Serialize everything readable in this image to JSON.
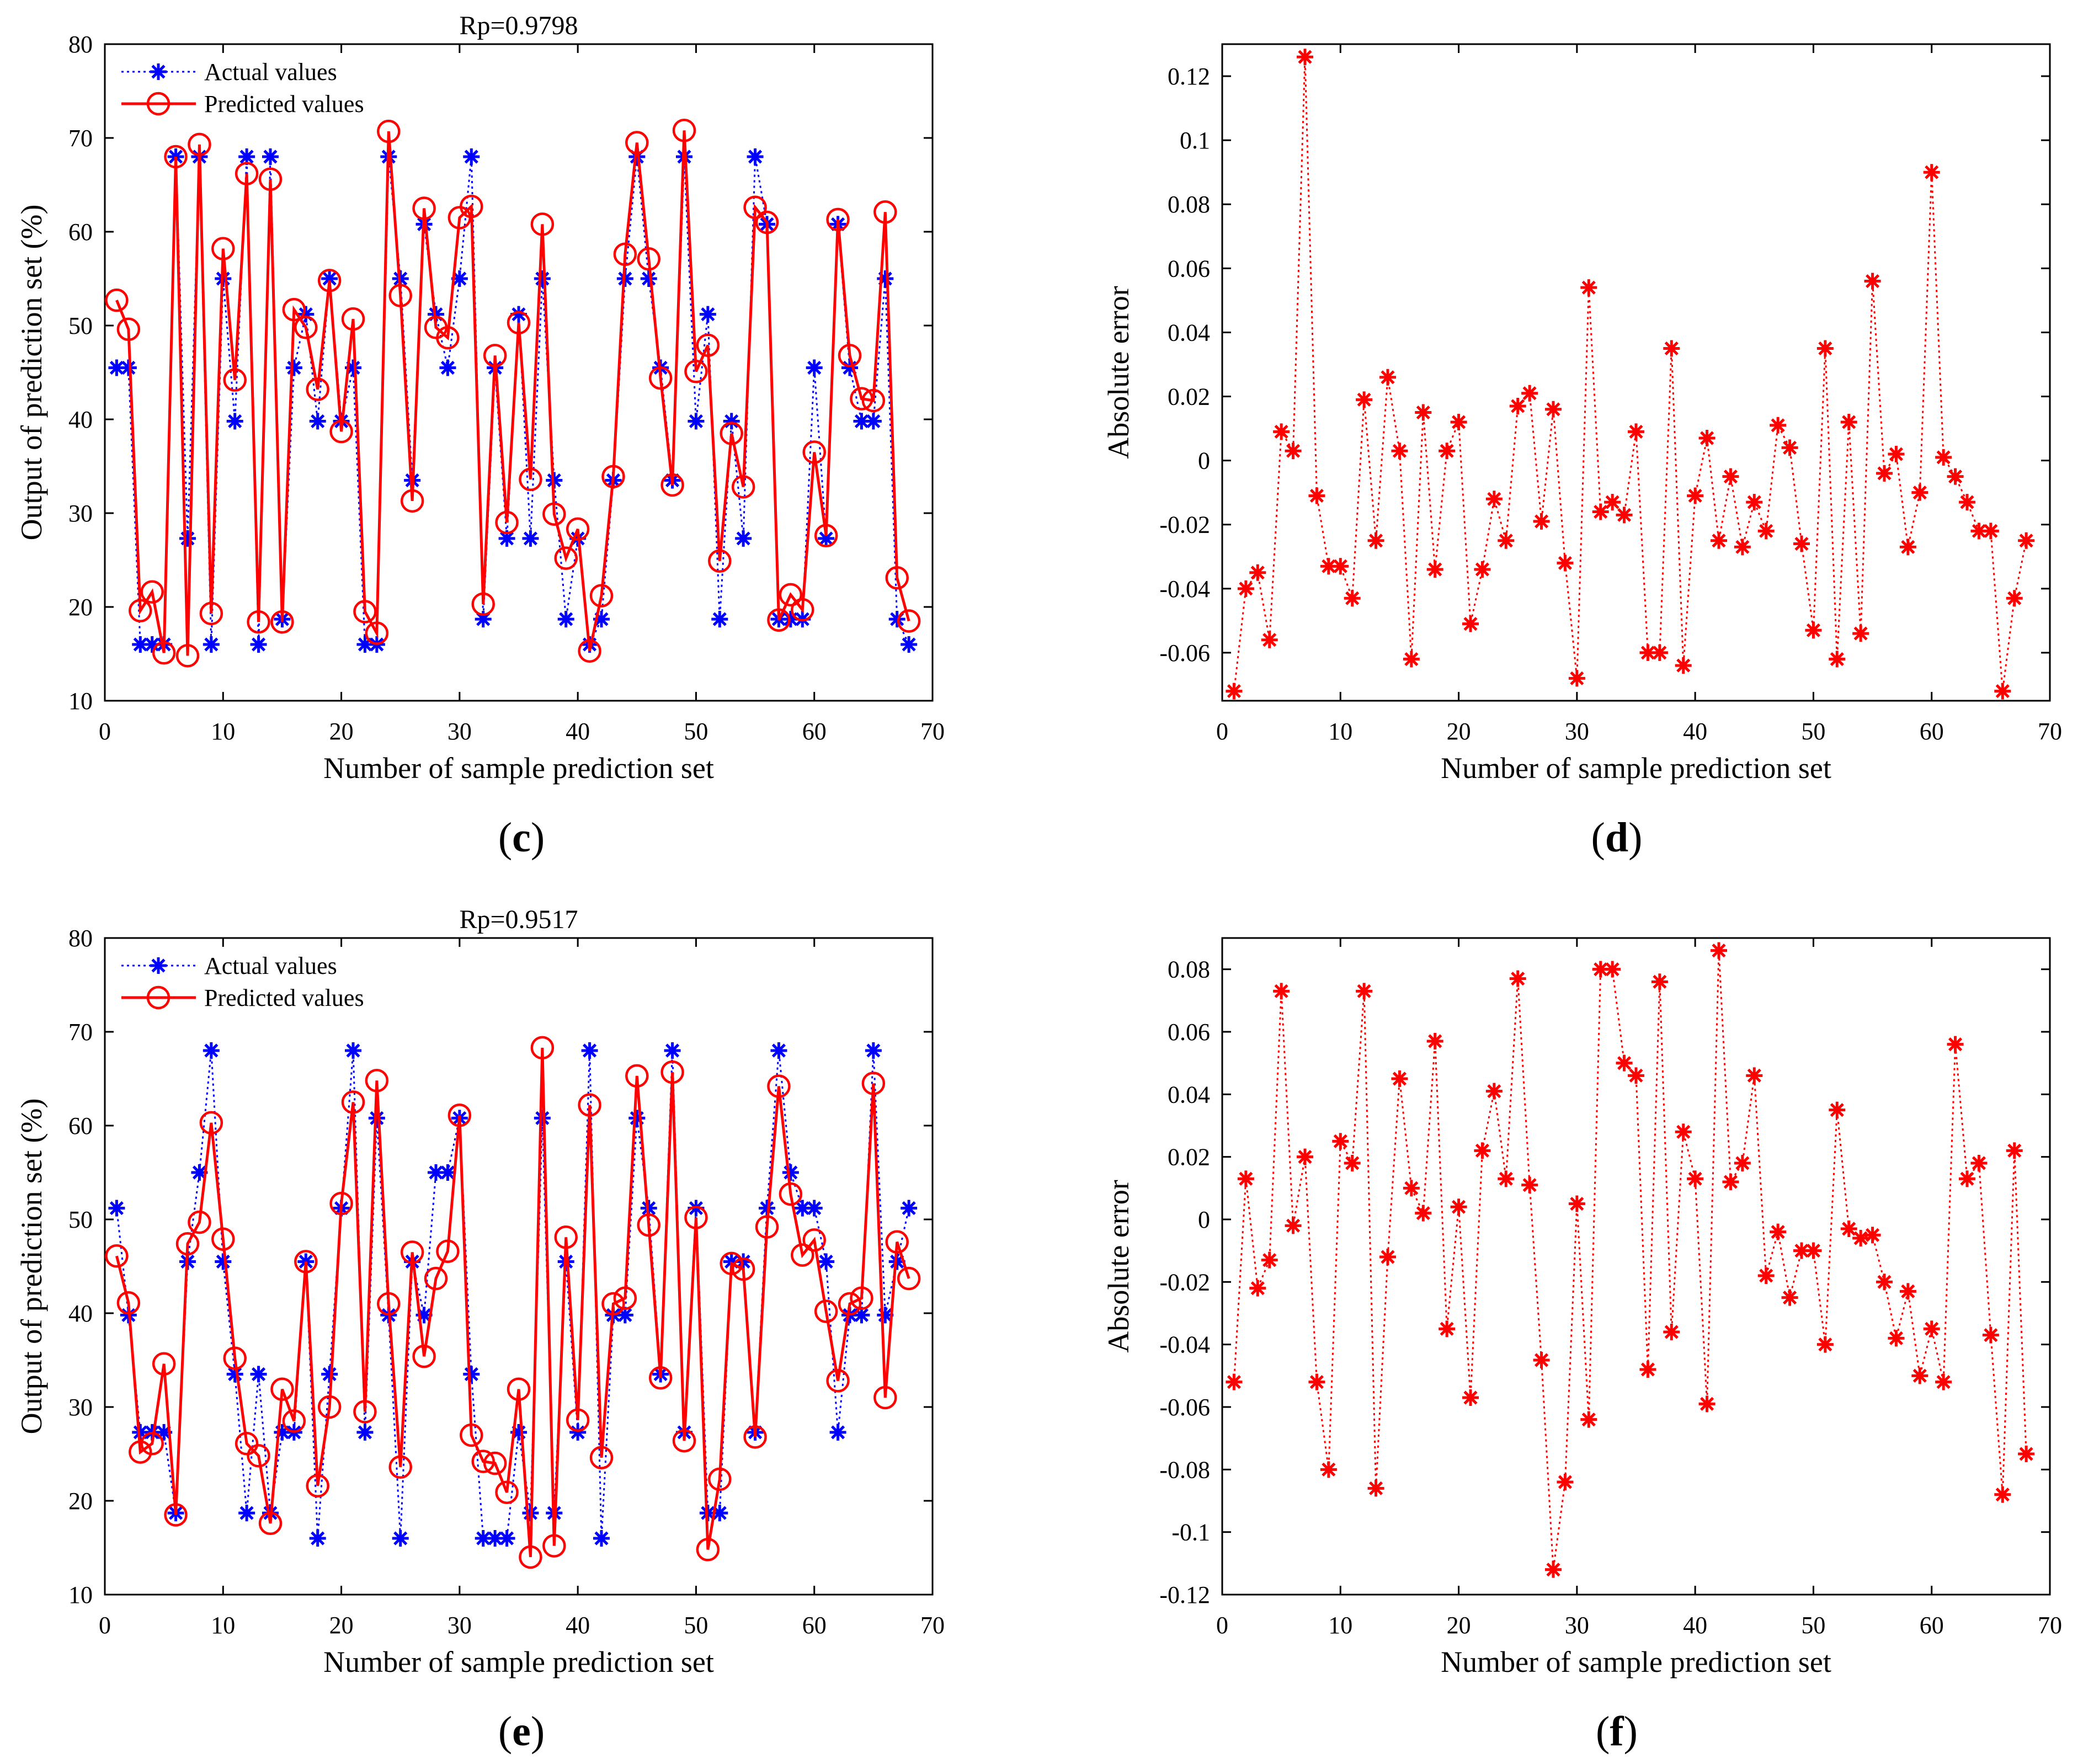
{
  "colors": {
    "actual": "#0000ff",
    "predicted": "#ff0000",
    "error": "#ff0000",
    "axis": "#000000"
  },
  "chart_data": [
    {
      "id": "c",
      "type": "line",
      "caption_open": "(",
      "caption_letter": "c",
      "caption_close": ")",
      "title": "Rp=0.9798",
      "xlabel": "Number of sample prediction set",
      "ylabel": "Output of prediction set (%)",
      "xlim": [
        0,
        70
      ],
      "ylim": [
        10,
        80
      ],
      "xticks": [
        0,
        10,
        20,
        30,
        40,
        50,
        60,
        70
      ],
      "yticks": [
        10,
        20,
        30,
        40,
        50,
        60,
        70,
        80
      ],
      "legend": [
        "Actual values",
        "Predicted values"
      ],
      "series": [
        {
          "name": "Actual values",
          "style": "dotted-star",
          "color": "#0000ff",
          "values": [
            45.5,
            45.5,
            16,
            16,
            16,
            68,
            27.3,
            68,
            16,
            55,
            39.8,
            68,
            16,
            68,
            18.7,
            45.5,
            51.2,
            39.8,
            55,
            39.8,
            45.5,
            16,
            16,
            68,
            55,
            33.5,
            60.8,
            51.2,
            45.5,
            55,
            68,
            18.7,
            45.5,
            27.3,
            51.2,
            27.3,
            55,
            33.5,
            18.7,
            27.3,
            16,
            18.7,
            33.5,
            55,
            68,
            55,
            45.5,
            33.5,
            68,
            39.8,
            51.2,
            18.7,
            39.8,
            27.3,
            68,
            60.8,
            18.7,
            18.7,
            18.7,
            45.5,
            27.3,
            60.8,
            45.5,
            39.8,
            39.8,
            55,
            18.7,
            16
          ]
        },
        {
          "name": "Predicted values",
          "style": "solid-circle",
          "color": "#ff0000",
          "values": [
            52.7,
            49.6,
            19.6,
            21.6,
            15.1,
            68,
            14.8,
            69.3,
            19.3,
            58.2,
            44.2,
            66.2,
            18.4,
            65.6,
            18.4,
            51.7,
            49.8,
            43.2,
            54.8,
            38.7,
            50.7,
            19.5,
            17.2,
            70.7,
            53.2,
            31.3,
            62.5,
            49.8,
            48.7,
            61.5,
            62.7,
            20.3,
            46.8,
            29,
            50.3,
            33.6,
            60.8,
            29.9,
            25.2,
            28.3,
            15.3,
            21.2,
            33.9,
            57.6,
            69.5,
            57.1,
            44.4,
            33,
            70.8,
            45.1,
            47.9,
            24.9,
            38.5,
            32.8,
            62.6,
            61,
            18.6,
            21.3,
            19.7,
            36.5,
            27.6,
            61.3,
            46.8,
            42.2,
            42,
            62.1,
            23.1,
            18.5
          ]
        }
      ]
    },
    {
      "id": "d",
      "type": "line",
      "caption_open": "(",
      "caption_letter": "d",
      "caption_close": ")",
      "title": "",
      "xlabel": "Number of sample prediction set",
      "ylabel": "Absolute error",
      "xlim": [
        0,
        70
      ],
      "ylim": [
        -0.075,
        0.13
      ],
      "xticks": [
        0,
        10,
        20,
        30,
        40,
        50,
        60,
        70
      ],
      "yticks": [
        -0.06,
        -0.04,
        -0.02,
        0,
        0.02,
        0.04,
        0.06,
        0.08,
        0.1,
        0.12
      ],
      "yticklabels": [
        "-0.06",
        "-0.04",
        "-0.02",
        "0",
        "0.02",
        "0.04",
        "0.06",
        "0.08",
        "0.1",
        "0.12"
      ],
      "series": [
        {
          "name": "Absolute error",
          "style": "dotted-star",
          "color": "#ff0000",
          "values": [
            -0.072,
            -0.04,
            -0.035,
            -0.056,
            0.009,
            0.003,
            0.126,
            -0.011,
            -0.033,
            -0.033,
            -0.043,
            0.019,
            -0.025,
            0.026,
            0.003,
            -0.062,
            0.015,
            -0.034,
            0.003,
            0.012,
            -0.051,
            -0.034,
            -0.012,
            -0.025,
            0.017,
            0.021,
            -0.019,
            0.016,
            -0.032,
            -0.068,
            0.054,
            -0.016,
            -0.013,
            -0.017,
            0.009,
            -0.06,
            -0.06,
            0.035,
            -0.064,
            -0.011,
            0.007,
            -0.025,
            -0.005,
            -0.027,
            -0.013,
            -0.022,
            0.011,
            0.004,
            -0.026,
            -0.053,
            0.035,
            -0.062,
            0.012,
            -0.054,
            0.056,
            -0.004,
            0.002,
            -0.027,
            -0.01,
            0.09,
            0.001,
            -0.005,
            -0.013,
            -0.022,
            -0.022,
            -0.072,
            -0.043,
            -0.025
          ]
        }
      ]
    },
    {
      "id": "e",
      "type": "line",
      "caption_open": "(",
      "caption_letter": "e",
      "caption_close": ")",
      "title": "Rp=0.9517",
      "xlabel": "Number of sample prediction set",
      "ylabel": "Output of prediction set (%)",
      "xlim": [
        0,
        70
      ],
      "ylim": [
        10,
        80
      ],
      "xticks": [
        0,
        10,
        20,
        30,
        40,
        50,
        60,
        70
      ],
      "yticks": [
        10,
        20,
        30,
        40,
        50,
        60,
        70,
        80
      ],
      "legend": [
        "Actual values",
        "Predicted values"
      ],
      "series": [
        {
          "name": "Actual values",
          "style": "dotted-star",
          "color": "#0000ff",
          "values": [
            51.2,
            39.8,
            27.3,
            27.3,
            27.3,
            18.7,
            45.5,
            55,
            68,
            45.5,
            33.5,
            18.7,
            33.5,
            18.7,
            27.3,
            27.3,
            45.5,
            16,
            33.5,
            51.2,
            68,
            27.3,
            60.8,
            39.8,
            16,
            45.5,
            39.8,
            55,
            55,
            60.8,
            33.5,
            16,
            16,
            16,
            27.3,
            18.7,
            60.8,
            18.7,
            45.5,
            27.3,
            68,
            16,
            39.8,
            39.8,
            60.8,
            51.2,
            33.5,
            68,
            27.3,
            51.2,
            18.7,
            18.7,
            45.5,
            45.5,
            27.3,
            51.2,
            68,
            55,
            51.2,
            51.2,
            45.5,
            27.3,
            39.8,
            39.8,
            68,
            39.8,
            45.5,
            51.2
          ]
        },
        {
          "name": "Predicted values",
          "style": "solid-circle",
          "color": "#ff0000",
          "values": [
            46.1,
            41.1,
            25.2,
            26.1,
            34.6,
            18.5,
            47.4,
            49.7,
            60.3,
            47.9,
            35.2,
            26.1,
            24.8,
            17.6,
            31.9,
            28.5,
            45.5,
            21.6,
            30,
            51.7,
            62.5,
            29.5,
            64.8,
            41,
            23.6,
            46.5,
            35.4,
            43.7,
            46.6,
            61.1,
            27,
            24.2,
            24,
            20.9,
            31.9,
            14,
            68.3,
            15.2,
            48.1,
            28.6,
            62.2,
            24.6,
            41,
            41.6,
            65.3,
            49.4,
            33.1,
            65.7,
            26.4,
            50.2,
            14.8,
            22.3,
            45.3,
            44.7,
            26.8,
            49.2,
            64.2,
            52.7,
            46.2,
            47.8,
            40.2,
            32.8,
            41,
            41.6,
            64.5,
            31,
            47.6,
            43.7
          ]
        }
      ]
    },
    {
      "id": "f",
      "type": "line",
      "caption_open": "(",
      "caption_letter": "f",
      "caption_close": ")",
      "title": "",
      "xlabel": "Number of sample prediction set",
      "ylabel": "Absolute error",
      "xlim": [
        0,
        70
      ],
      "ylim": [
        -0.12,
        0.09
      ],
      "xticks": [
        0,
        10,
        20,
        30,
        40,
        50,
        60,
        70
      ],
      "yticks": [
        -0.12,
        -0.1,
        -0.08,
        -0.06,
        -0.04,
        -0.02,
        0,
        0.02,
        0.04,
        0.06,
        0.08
      ],
      "yticklabels": [
        "-0.12",
        "-0.1",
        "-0.08",
        "-0.06",
        "-0.04",
        "-0.02",
        "0",
        "0.02",
        "0.04",
        "0.06",
        "0.08"
      ],
      "series": [
        {
          "name": "Absolute error",
          "style": "dotted-star",
          "color": "#ff0000",
          "values": [
            -0.052,
            0.013,
            -0.022,
            -0.013,
            0.073,
            -0.002,
            0.02,
            -0.052,
            -0.08,
            0.025,
            0.018,
            0.073,
            -0.086,
            -0.012,
            0.045,
            0.01,
            0.002,
            0.057,
            -0.035,
            0.004,
            -0.057,
            0.022,
            0.041,
            0.013,
            0.077,
            0.011,
            -0.045,
            -0.112,
            -0.084,
            0.005,
            -0.064,
            0.08,
            0.08,
            0.05,
            0.046,
            -0.048,
            0.076,
            -0.036,
            0.028,
            0.013,
            -0.059,
            0.086,
            0.012,
            0.018,
            0.046,
            -0.018,
            -0.004,
            -0.025,
            -0.01,
            -0.01,
            -0.04,
            0.035,
            -0.003,
            -0.006,
            -0.005,
            -0.02,
            -0.038,
            -0.023,
            -0.05,
            -0.035,
            -0.052,
            0.056,
            0.013,
            0.018,
            -0.037,
            -0.088,
            0.022,
            -0.075
          ]
        }
      ]
    }
  ]
}
